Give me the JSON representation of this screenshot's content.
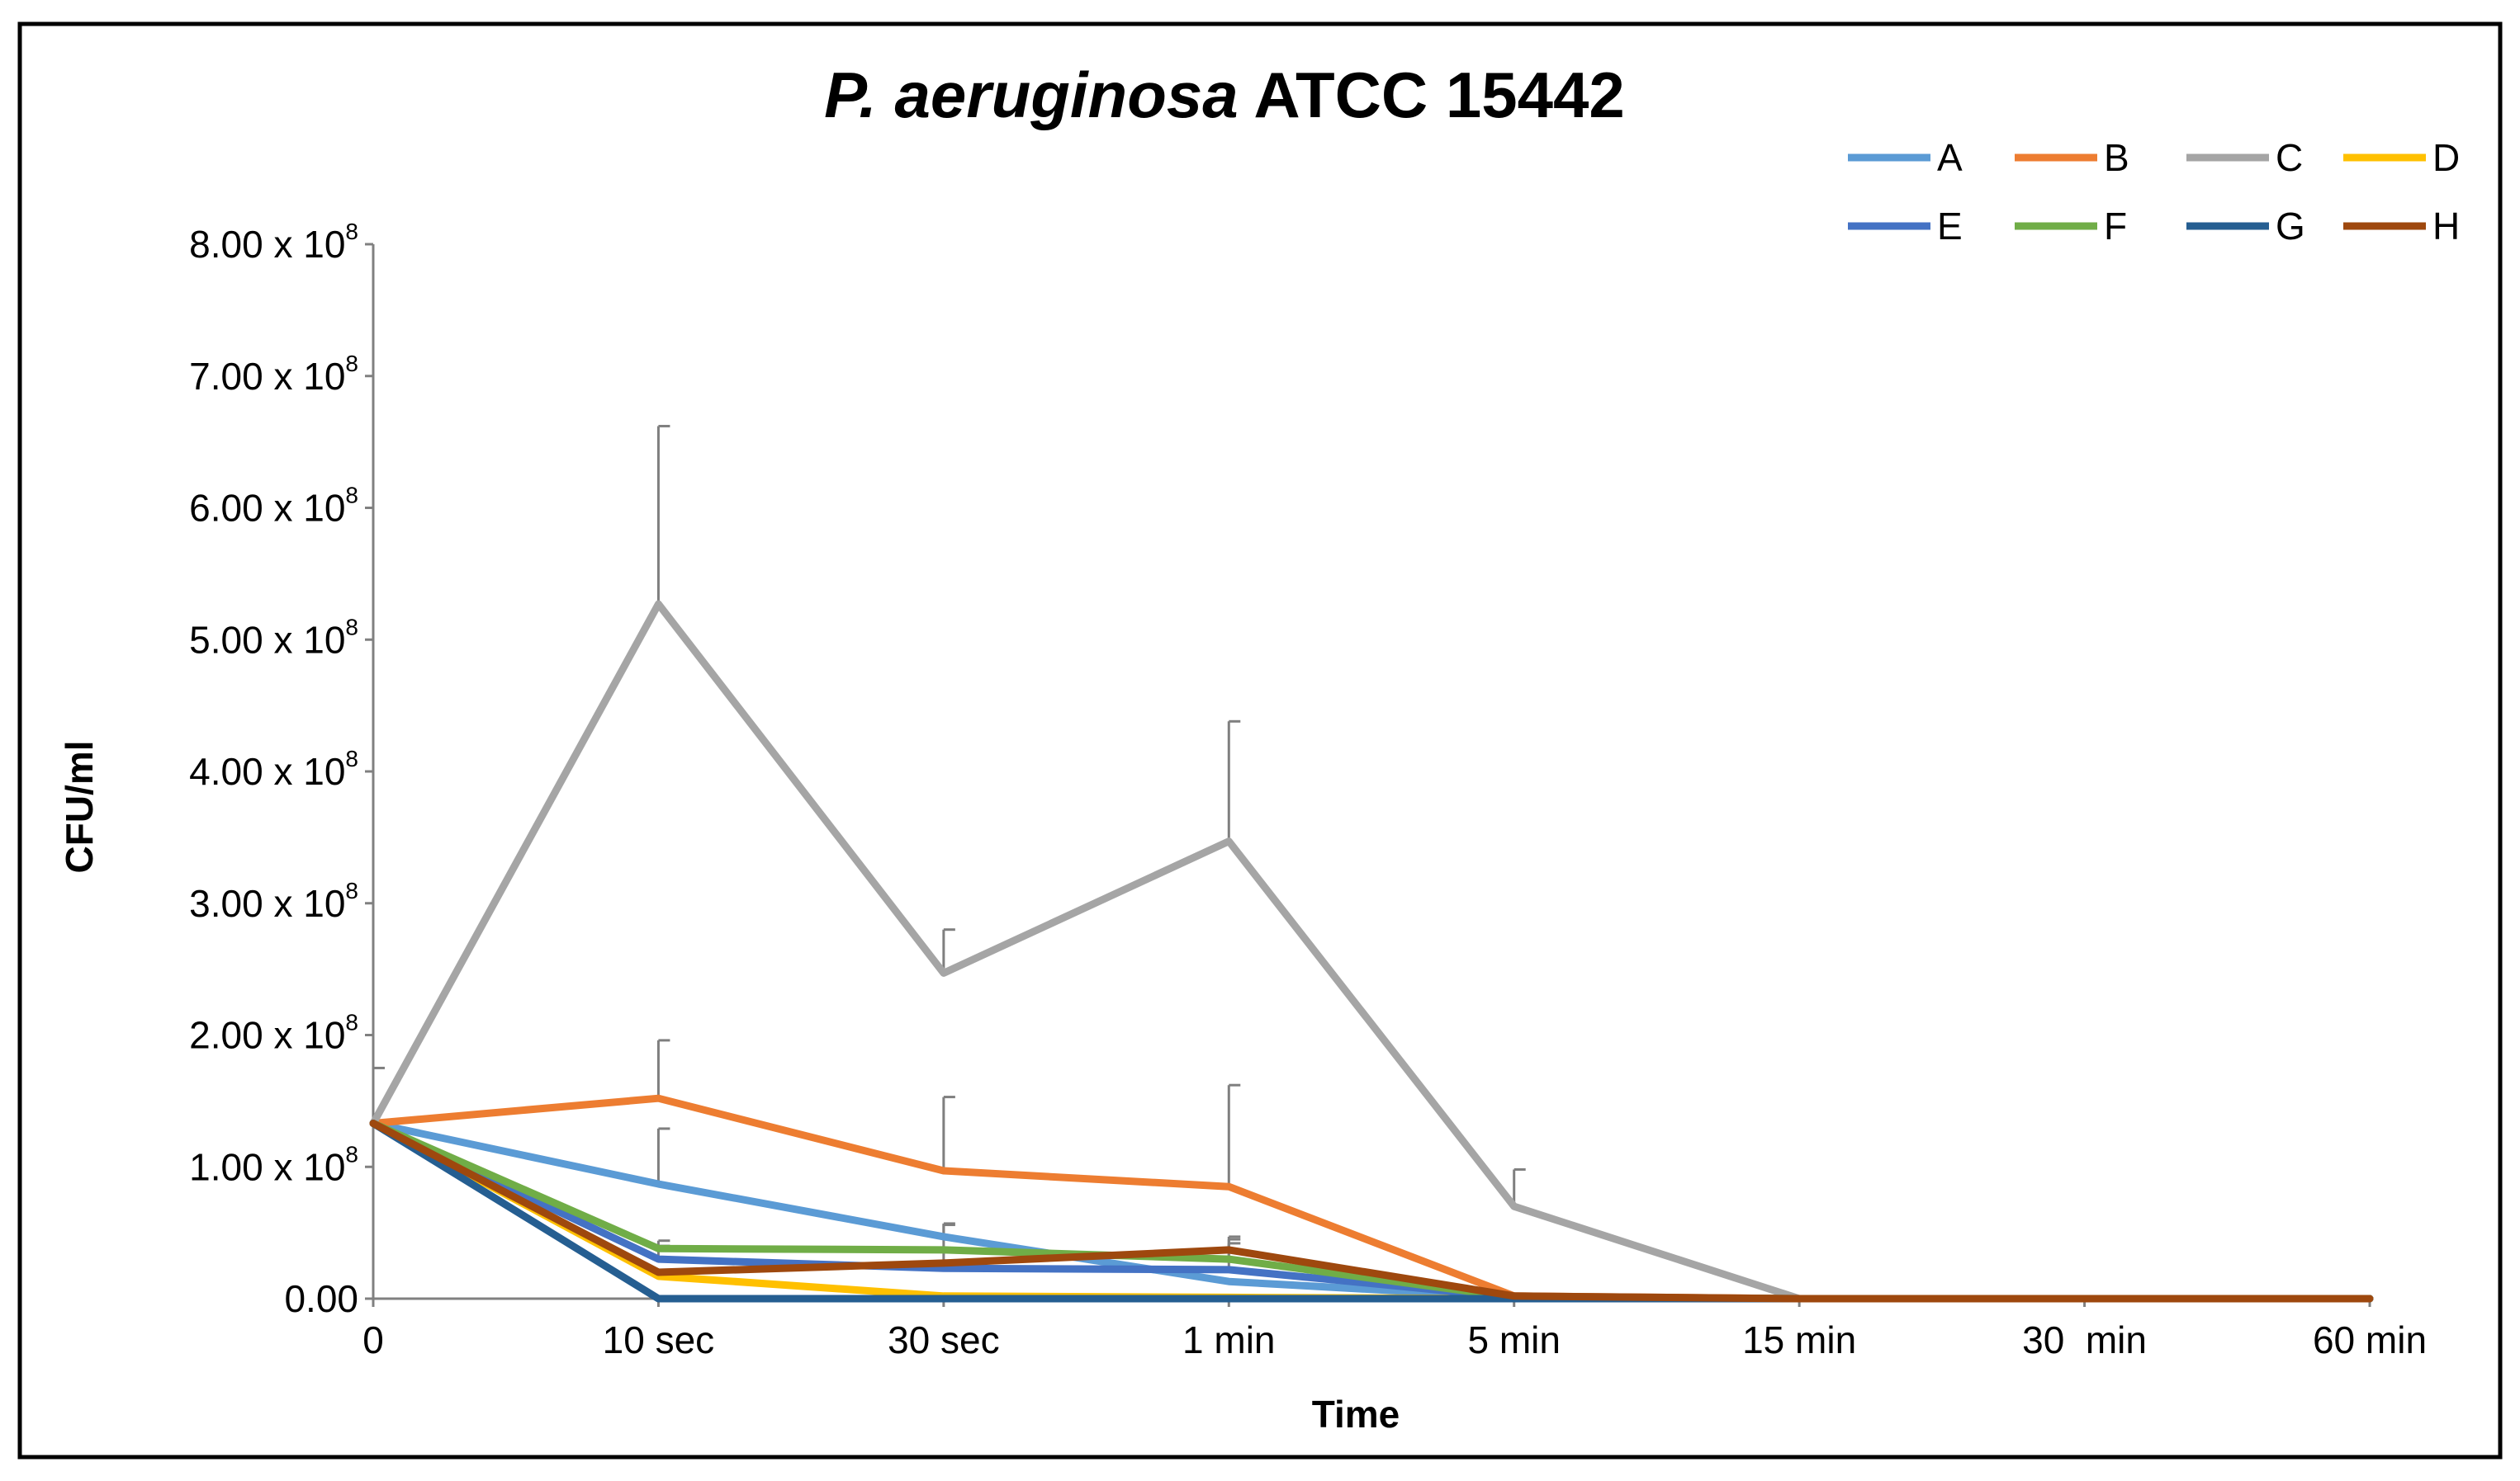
{
  "chart_data": {
    "type": "line",
    "title_italic": "P. aeruginosa",
    "title_rest": " ATCC 15442",
    "xlabel": "Time",
    "ylabel": "CFU/ml",
    "categories": [
      "0",
      "10 sec",
      "30 sec",
      "1 min",
      "5 min",
      "15 min",
      "30  min",
      "60 min"
    ],
    "ylim": [
      0,
      800000000
    ],
    "y_ticks": [
      {
        "value": 0,
        "label": "0.00",
        "exp": ""
      },
      {
        "value": 100000000,
        "label": "1.00 x 10",
        "exp": "8"
      },
      {
        "value": 200000000,
        "label": "2.00 x 10",
        "exp": "8"
      },
      {
        "value": 300000000,
        "label": "3.00 x 10",
        "exp": "8"
      },
      {
        "value": 400000000,
        "label": "4.00 x 10",
        "exp": "8"
      },
      {
        "value": 500000000,
        "label": "5.00 x 10",
        "exp": "8"
      },
      {
        "value": 600000000,
        "label": "6.00 x 10",
        "exp": "8"
      },
      {
        "value": 700000000,
        "label": "7.00 x 10",
        "exp": "8"
      },
      {
        "value": 800000000,
        "label": "8.00 x 10",
        "exp": "8"
      }
    ],
    "legend_position": "top-right",
    "series": [
      {
        "name": "A",
        "color": "#5B9BD5",
        "values": [
          133000000,
          87000000,
          47000000,
          13000000,
          1000000,
          0,
          0,
          0
        ],
        "errors": [
          0,
          42000000,
          10000000,
          0,
          0,
          0,
          0,
          0
        ]
      },
      {
        "name": "B",
        "color": "#ED7D31",
        "values": [
          133000000,
          152000000,
          97000000,
          85000000,
          2000000,
          0,
          0,
          0
        ],
        "errors": [
          0,
          44000000,
          56000000,
          77000000,
          0,
          0,
          0,
          0
        ]
      },
      {
        "name": "C",
        "color": "#A5A5A5",
        "values": [
          133000000,
          527000000,
          247000000,
          347000000,
          70000000,
          0,
          0,
          0
        ],
        "errors": [
          42000000,
          135000000,
          33000000,
          91000000,
          28000000,
          0,
          0,
          0
        ]
      },
      {
        "name": "D",
        "color": "#FFC000",
        "values": [
          133000000,
          17000000,
          2000000,
          1000000,
          0,
          0,
          0,
          0
        ],
        "errors": [
          0,
          0,
          0,
          0,
          0,
          0,
          0,
          0
        ]
      },
      {
        "name": "E",
        "color": "#4472C4",
        "values": [
          133000000,
          30000000,
          23000000,
          22000000,
          1000000,
          0,
          0,
          0
        ],
        "errors": [
          0,
          10000000,
          33000000,
          20000000,
          0,
          0,
          0,
          0
        ]
      },
      {
        "name": "F",
        "color": "#70AD47",
        "values": [
          133000000,
          38000000,
          37000000,
          30000000,
          1000000,
          0,
          0,
          0
        ],
        "errors": [
          0,
          6000000,
          0,
          15000000,
          0,
          0,
          0,
          0
        ]
      },
      {
        "name": "G",
        "color": "#255E91",
        "values": [
          133000000,
          0,
          0,
          0,
          0,
          0,
          0,
          0
        ],
        "errors": [
          0,
          0,
          0,
          0,
          0,
          0,
          0,
          0
        ]
      },
      {
        "name": "H",
        "color": "#9E480E",
        "values": [
          133000000,
          20000000,
          27000000,
          37000000,
          2000000,
          0,
          0,
          0
        ],
        "errors": [
          0,
          0,
          0,
          10000000,
          0,
          0,
          0,
          0
        ]
      }
    ]
  }
}
